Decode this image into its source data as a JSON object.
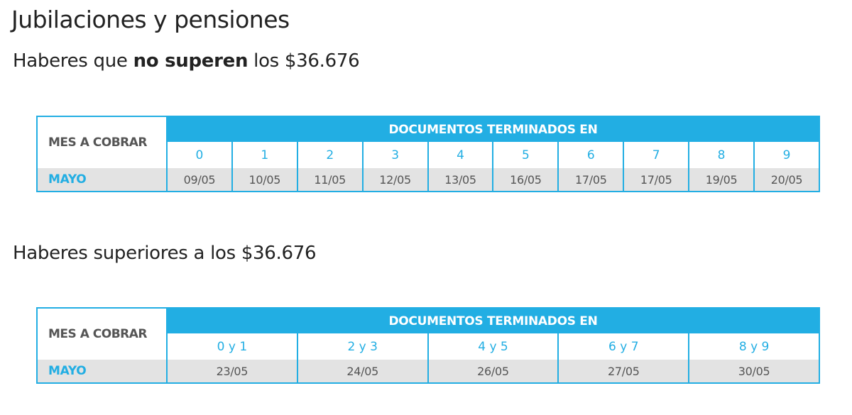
{
  "title": "Jubilaciones y pensiones",
  "section1": {
    "heading_pre": "Haberes que ",
    "heading_bold": "no superen",
    "heading_post": " los $36.676",
    "table": {
      "corner_label": "MES A COBRAR",
      "band_label": "DOCUMENTOS TERMINADOS EN",
      "digits": [
        "0",
        "1",
        "2",
        "3",
        "4",
        "5",
        "6",
        "7",
        "8",
        "9"
      ],
      "month": "MAYO",
      "dates": [
        "09/05",
        "10/05",
        "11/05",
        "12/05",
        "13/05",
        "16/05",
        "17/05",
        "17/05",
        "19/05",
        "20/05"
      ]
    }
  },
  "section2": {
    "heading": "Haberes superiores a los $36.676",
    "table": {
      "corner_label": "MES A COBRAR",
      "band_label": "DOCUMENTOS TERMINADOS EN",
      "digits": [
        "0 y 1",
        "2 y 3",
        "4 y 5",
        "6 y 7",
        "8 y 9"
      ],
      "month": "MAYO",
      "dates": [
        "23/05",
        "24/05",
        "26/05",
        "27/05",
        "30/05"
      ]
    }
  },
  "colors": {
    "accent": "#22aee3",
    "row_bg": "#e3e3e3",
    "text_dark": "#222222",
    "text_muted": "#555555"
  }
}
